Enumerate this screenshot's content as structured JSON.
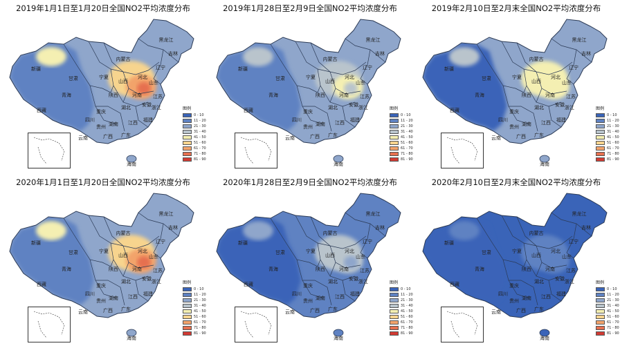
{
  "legend": {
    "title": "图例",
    "classes": [
      {
        "label": "0 - 10",
        "color": "#3a64b8"
      },
      {
        "label": "11 - 20",
        "color": "#5f82c2"
      },
      {
        "label": "21 - 30",
        "color": "#8fa6cb"
      },
      {
        "label": "31 - 40",
        "color": "#b9c4cc"
      },
      {
        "label": "41 - 50",
        "color": "#f4efb2"
      },
      {
        "label": "51 - 60",
        "color": "#f7d48e"
      },
      {
        "label": "61 - 70",
        "color": "#f2a36b"
      },
      {
        "label": "71 - 80",
        "color": "#e6704f"
      },
      {
        "label": "81 - 90",
        "color": "#d23b33"
      }
    ]
  },
  "provinces": [
    "新疆",
    "西藏",
    "青海",
    "甘肃",
    "内蒙古",
    "黑龙江",
    "吉林",
    "辽宁",
    "四川",
    "云南",
    "广西",
    "广东",
    "湖南",
    "江西",
    "湖北",
    "河南",
    "山东",
    "山西",
    "陕西",
    "贵州",
    "福建",
    "浙江",
    "安徽",
    "江苏",
    "河北",
    "宁夏",
    "重庆",
    "海南"
  ],
  "panels": [
    {
      "title": "2019年1月1日至1月20日全国NO2平均浓度分布",
      "base": "#8fa6cb",
      "west": "#5f82c2",
      "blobs": [
        {
          "color": "#f4efb2"
        },
        {
          "color": "#f7d48e"
        },
        {
          "color": "#f2a36b"
        },
        {
          "color": "#e6704f"
        }
      ]
    },
    {
      "title": "2019年1月28日至2月9日全国NO2平均浓度分布",
      "base": "#8fa6cb",
      "west": "#5f82c2",
      "blobs": [
        {
          "color": "#b9c4cc"
        },
        {
          "color": "#b9c4cc"
        },
        {
          "color": "#f4efb2"
        },
        {
          "color": "#b9c4cc"
        }
      ]
    },
    {
      "title": "2019年2月10日至2月末全国NO2平均浓度分布",
      "base": "#8fa6cb",
      "west": "#3a64b8",
      "blobs": [
        {
          "color": "#b9c4cc"
        },
        {
          "color": "#f4efb2"
        },
        {
          "color": "#f4efb2"
        },
        {
          "color": "#f4efb2"
        }
      ]
    },
    {
      "title": "2020年1月1日至1月20日全国NO2平均浓度分布",
      "base": "#8fa6cb",
      "west": "#5f82c2",
      "blobs": [
        {
          "color": "#f4efb2"
        },
        {
          "color": "#f7d48e"
        },
        {
          "color": "#f2a36b"
        },
        {
          "color": "#e6704f"
        }
      ]
    },
    {
      "title": "2020年1月28日至2月9日全国NO2平均浓度分布",
      "base": "#5f82c2",
      "west": "#3a64b8",
      "blobs": [
        {
          "color": "#8fa6cb"
        },
        {
          "color": "#b9c4cc"
        },
        {
          "color": "#b9c4cc"
        },
        {
          "color": "#8fa6cb"
        }
      ]
    },
    {
      "title": "2020年2月10日至2月末全国NO2平均浓度分布",
      "base": "#3a64b8",
      "west": "#3a64b8",
      "blobs": [
        {
          "color": "#5f82c2"
        },
        {
          "color": "#5f82c2"
        },
        {
          "color": "#5f82c2"
        },
        {
          "color": "#5f82c2"
        }
      ]
    }
  ]
}
